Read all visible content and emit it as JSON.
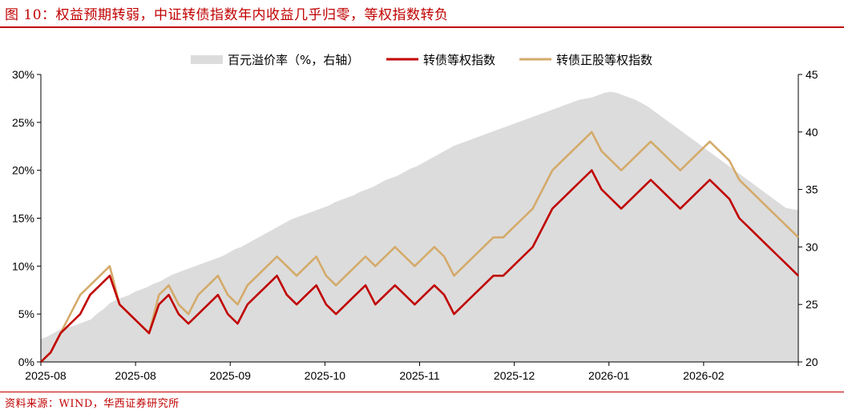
{
  "header": {
    "title": "图 10：权益预期转弱，中证转债指数年内收益几乎归零，等权指数转负"
  },
  "footer": {
    "source": "资料来源：WIND，华西证券研究所"
  },
  "chart_data": {
    "type": "line",
    "title": "图 10：权益预期转弱，中证转债指数年内收益几乎归零，等权指数转负",
    "x_tick_labels": [
      "2025-08",
      "2025-08",
      "2025-09",
      "2025-10",
      "2025-11",
      "2025-12",
      "2026-01",
      "2026-02"
    ],
    "y_left": {
      "ylim": [
        0,
        30
      ],
      "tick_labels": [
        "0%",
        "5%",
        "10%",
        "15%",
        "20%",
        "25%",
        "30%"
      ],
      "tick_values": [
        0,
        5,
        10,
        15,
        20,
        25,
        30
      ]
    },
    "y_right": {
      "ylim": [
        20,
        45
      ],
      "tick_labels": [
        "20",
        "25",
        "30",
        "35",
        "40",
        "45"
      ],
      "tick_values": [
        20,
        25,
        30,
        35,
        40,
        45
      ]
    },
    "legend": {
      "placement": "top-center"
    },
    "colors": {
      "premium": "#DCDCDC",
      "equal_weight": "#C00000",
      "positive_stock_equal_weight": "#D4AA6A"
    },
    "series": [
      {
        "name": "百元溢价率（%，右轴）",
        "type": "area",
        "axis": "right",
        "values": [
          22,
          22.2,
          22.5,
          22.8,
          23,
          23.1,
          23.3,
          23.5,
          23.7,
          24.2,
          24.6,
          25.1,
          25.4,
          25.6,
          25.8,
          26.1,
          26.3,
          26.5,
          26.8,
          27,
          27.3,
          27.6,
          27.8,
          28,
          28.2,
          28.4,
          28.6,
          28.8,
          29,
          29.2,
          29.5,
          29.8,
          30,
          30.3,
          30.6,
          30.9,
          31.2,
          31.5,
          31.8,
          32.1,
          32.4,
          32.6,
          32.8,
          33,
          33.2,
          33.4,
          33.6,
          33.9,
          34.1,
          34.3,
          34.5,
          34.8,
          35,
          35.2,
          35.5,
          35.8,
          36,
          36.2,
          36.5,
          36.8,
          37,
          37.3,
          37.6,
          37.9,
          38.2,
          38.5,
          38.8,
          39,
          39.2,
          39.4,
          39.6,
          39.8,
          40,
          40.2,
          40.4,
          40.6,
          40.8,
          41,
          41.2,
          41.4,
          41.6,
          41.8,
          42,
          42.2,
          42.4,
          42.6,
          42.8,
          42.9,
          43,
          43.2,
          43.4,
          43.5,
          43.4,
          43.2,
          43,
          42.8,
          42.5,
          42.2,
          41.8,
          41.4,
          41,
          40.6,
          40.2,
          39.8,
          39.4,
          39,
          38.6,
          38.2,
          37.8,
          37.4,
          37,
          36.6,
          36.2,
          35.8,
          35.4,
          35,
          34.6,
          34.2,
          33.8,
          33.4,
          33.3,
          33.2
        ]
      },
      {
        "name": "转债等权指数",
        "axis": "left",
        "values": [
          0,
          1,
          3,
          4,
          5,
          7,
          8,
          9,
          6,
          5,
          4,
          3,
          6,
          7,
          5,
          4,
          5,
          6,
          7,
          5,
          4,
          6,
          7,
          8,
          9,
          7,
          6,
          7,
          8,
          6,
          5,
          6,
          7,
          8,
          6,
          7,
          8,
          7,
          6,
          7,
          8,
          7,
          5,
          6,
          7,
          8,
          9,
          9,
          10,
          11,
          12,
          14,
          16,
          17,
          18,
          19,
          20,
          18,
          17,
          16,
          17,
          18,
          19,
          18,
          17,
          16,
          17,
          18,
          19,
          18,
          17,
          15,
          14,
          13,
          12,
          11,
          10,
          9
        ]
      },
      {
        "name": "转债正股等权指数",
        "axis": "left",
        "values": [
          0,
          1,
          3,
          5,
          7,
          8,
          9,
          10,
          6,
          5,
          4,
          3,
          7,
          8,
          6,
          5,
          7,
          8,
          9,
          7,
          6,
          8,
          9,
          10,
          11,
          10,
          9,
          10,
          11,
          9,
          8,
          9,
          10,
          11,
          10,
          11,
          12,
          11,
          10,
          11,
          12,
          11,
          9,
          10,
          11,
          12,
          13,
          13,
          14,
          15,
          16,
          18,
          20,
          21,
          22,
          23,
          24,
          22,
          21,
          20,
          21,
          22,
          23,
          22,
          21,
          20,
          21,
          22,
          23,
          22,
          21,
          19,
          18,
          17,
          16,
          15,
          14,
          13
        ]
      }
    ]
  }
}
